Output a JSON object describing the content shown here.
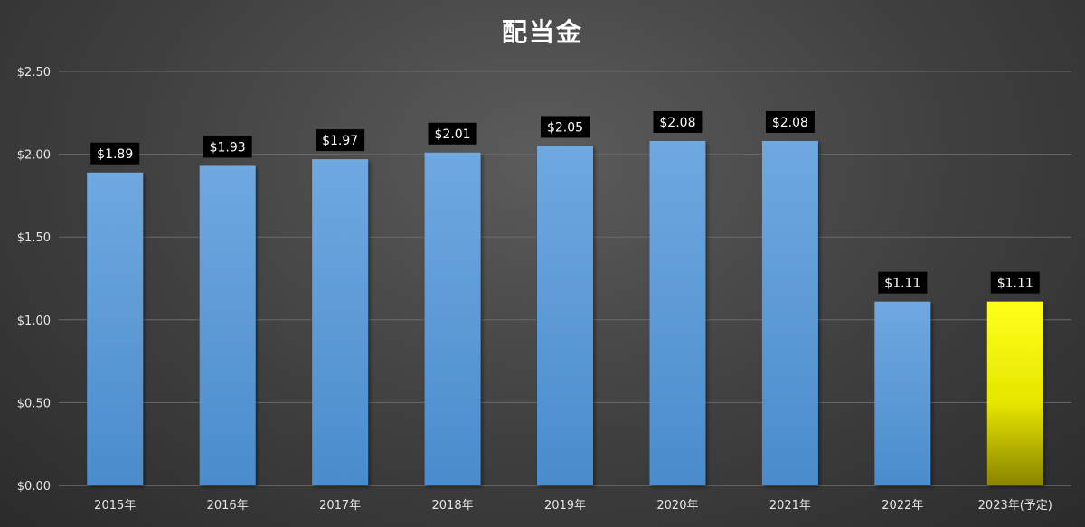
{
  "chart_data": {
    "type": "bar",
    "title": "配当金",
    "categories": [
      "2015年",
      "2016年",
      "2017年",
      "2018年",
      "2019年",
      "2020年",
      "2021年",
      "2022年",
      "2023年(予定)"
    ],
    "values": [
      1.89,
      1.93,
      1.97,
      2.01,
      2.05,
      2.08,
      2.08,
      1.11,
      1.11
    ],
    "data_labels": [
      "$1.89",
      "$1.93",
      "$1.97",
      "$2.01",
      "$2.05",
      "$2.08",
      "$2.08",
      "$1.11",
      "$1.11"
    ],
    "y_ticks": [
      0,
      0.5,
      1.0,
      1.5,
      2.0,
      2.5
    ],
    "y_tick_labels": [
      "$0.00",
      "$0.50",
      "$1.00",
      "$1.50",
      "$2.00",
      "$2.50"
    ],
    "ylim": [
      0,
      2.5
    ],
    "xlabel": "",
    "ylabel": "",
    "grid": true,
    "legend": "none",
    "highlight_index": 8,
    "colors": {
      "background": "#404040",
      "bar": "#5b9bd5",
      "bar_highlight": "#ffff00",
      "grid": "#6a6a6a",
      "label_bg": "#000000",
      "text": "#ffffff"
    }
  }
}
